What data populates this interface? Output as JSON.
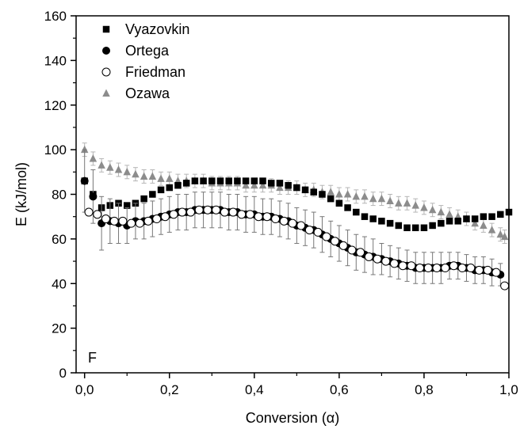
{
  "chart_data": {
    "type": "scatter",
    "xlabel": "Conversion (α)",
    "ylabel": "E (kJ/mol)",
    "panel_label": "F",
    "xlim": [
      -0.02,
      1.0
    ],
    "ylim": [
      0,
      160
    ],
    "x_ticks": [
      0.0,
      0.2,
      0.4,
      0.6,
      0.8,
      1.0
    ],
    "x_tick_labels": [
      "0,0",
      "0,2",
      "0,4",
      "0,6",
      "0,8",
      "1,0"
    ],
    "y_ticks": [
      0,
      20,
      40,
      60,
      80,
      100,
      120,
      140,
      160
    ],
    "y_tick_labels": [
      "0",
      "20",
      "40",
      "60",
      "80",
      "100",
      "120",
      "140",
      "160"
    ],
    "legend_position": "top-left",
    "grid": false,
    "series": [
      {
        "name": "Vyazovkin",
        "marker": "square",
        "color": "#000000",
        "x": [
          0.0,
          0.02,
          0.04,
          0.06,
          0.08,
          0.1,
          0.12,
          0.14,
          0.16,
          0.18,
          0.2,
          0.22,
          0.24,
          0.26,
          0.28,
          0.3,
          0.32,
          0.34,
          0.36,
          0.38,
          0.4,
          0.42,
          0.44,
          0.46,
          0.48,
          0.5,
          0.52,
          0.54,
          0.56,
          0.58,
          0.6,
          0.62,
          0.64,
          0.66,
          0.68,
          0.7,
          0.72,
          0.74,
          0.76,
          0.78,
          0.8,
          0.82,
          0.84,
          0.86,
          0.88,
          0.9,
          0.92,
          0.94,
          0.96,
          0.98,
          1.0
        ],
        "y": [
          86,
          80,
          74,
          75,
          76,
          75,
          76,
          78,
          80,
          82,
          83,
          84,
          85,
          86,
          86,
          86,
          86,
          86,
          86,
          86,
          86,
          86,
          85,
          85,
          84,
          83,
          82,
          81,
          80,
          78,
          76,
          74,
          72,
          70,
          69,
          68,
          67,
          66,
          65,
          65,
          65,
          66,
          67,
          68,
          68,
          69,
          69,
          70,
          70,
          71,
          72
        ]
      },
      {
        "name": "Ortega",
        "marker": "circle-filled",
        "color": "#000000",
        "x": [
          0.0,
          0.02,
          0.04,
          0.06,
          0.08,
          0.1,
          0.12,
          0.14,
          0.16,
          0.18,
          0.2,
          0.22,
          0.24,
          0.26,
          0.28,
          0.3,
          0.32,
          0.34,
          0.36,
          0.38,
          0.4,
          0.42,
          0.44,
          0.46,
          0.48,
          0.5,
          0.52,
          0.54,
          0.56,
          0.58,
          0.6,
          0.62,
          0.64,
          0.66,
          0.68,
          0.7,
          0.72,
          0.74,
          0.76,
          0.78,
          0.8,
          0.82,
          0.84,
          0.86,
          0.88,
          0.9,
          0.92,
          0.94,
          0.96,
          0.98
        ],
        "y": [
          86,
          79,
          67,
          68,
          67,
          66,
          68,
          68,
          69,
          70,
          71,
          72,
          72,
          73,
          73,
          73,
          73,
          72,
          72,
          71,
          71,
          70,
          70,
          69,
          68,
          66,
          65,
          64,
          62,
          60,
          58,
          56,
          54,
          53,
          52,
          51,
          50,
          49,
          48,
          47,
          47,
          47,
          47,
          48,
          48,
          47,
          46,
          46,
          45,
          44
        ],
        "error": [
          14,
          12,
          12,
          10,
          9,
          8,
          8,
          8,
          8,
          8,
          8,
          8,
          8,
          8,
          8,
          8,
          8,
          8,
          8,
          8,
          8,
          8,
          8,
          8,
          8,
          8,
          8,
          8,
          8,
          8,
          8,
          8,
          8,
          8,
          8,
          7,
          7,
          7,
          7,
          7,
          7,
          7,
          7,
          6,
          6,
          6,
          6,
          6,
          6,
          5
        ]
      },
      {
        "name": "Friedman",
        "marker": "circle-open",
        "color": "#000000",
        "x": [
          0.01,
          0.03,
          0.05,
          0.07,
          0.09,
          0.11,
          0.13,
          0.15,
          0.17,
          0.19,
          0.21,
          0.23,
          0.25,
          0.27,
          0.29,
          0.31,
          0.33,
          0.35,
          0.37,
          0.39,
          0.41,
          0.43,
          0.45,
          0.47,
          0.49,
          0.51,
          0.53,
          0.55,
          0.57,
          0.59,
          0.61,
          0.63,
          0.65,
          0.67,
          0.69,
          0.71,
          0.73,
          0.75,
          0.77,
          0.79,
          0.81,
          0.83,
          0.85,
          0.87,
          0.89,
          0.91,
          0.93,
          0.95,
          0.97,
          0.99
        ],
        "y": [
          72,
          71,
          69,
          68,
          68,
          67,
          67,
          68,
          69,
          70,
          71,
          72,
          72,
          73,
          73,
          73,
          72,
          72,
          71,
          71,
          70,
          70,
          69,
          68,
          67,
          66,
          64,
          63,
          61,
          59,
          57,
          55,
          54,
          52,
          51,
          50,
          49,
          48,
          48,
          47,
          47,
          47,
          47,
          48,
          47,
          47,
          46,
          46,
          45,
          39
        ]
      },
      {
        "name": "Ozawa",
        "marker": "triangle",
        "color": "#8c8c8c",
        "x": [
          0.0,
          0.02,
          0.04,
          0.06,
          0.08,
          0.1,
          0.12,
          0.14,
          0.16,
          0.18,
          0.2,
          0.22,
          0.24,
          0.26,
          0.28,
          0.3,
          0.32,
          0.34,
          0.36,
          0.38,
          0.4,
          0.42,
          0.44,
          0.46,
          0.48,
          0.5,
          0.52,
          0.54,
          0.56,
          0.58,
          0.6,
          0.62,
          0.64,
          0.66,
          0.68,
          0.7,
          0.72,
          0.74,
          0.76,
          0.78,
          0.8,
          0.82,
          0.84,
          0.86,
          0.88,
          0.9,
          0.92,
          0.94,
          0.96,
          0.98,
          0.99
        ],
        "y": [
          100,
          96,
          93,
          92,
          91,
          90,
          89,
          88,
          88,
          87,
          87,
          86,
          86,
          86,
          86,
          85,
          85,
          85,
          85,
          84,
          84,
          84,
          84,
          83,
          83,
          83,
          82,
          82,
          81,
          81,
          80,
          80,
          79,
          79,
          78,
          78,
          77,
          76,
          76,
          75,
          74,
          73,
          72,
          71,
          70,
          69,
          67,
          66,
          64,
          62,
          61
        ],
        "error": [
          3,
          3,
          3,
          3,
          3,
          3,
          3,
          3,
          3,
          3,
          3,
          3,
          3,
          3,
          3,
          3,
          3,
          3,
          3,
          3,
          3,
          3,
          3,
          3,
          3,
          3,
          3,
          3,
          3,
          3,
          3,
          3,
          3,
          3,
          3,
          3,
          3,
          3,
          3,
          3,
          3,
          3,
          3,
          3,
          3,
          3,
          3,
          3,
          3,
          3,
          3
        ]
      }
    ]
  }
}
